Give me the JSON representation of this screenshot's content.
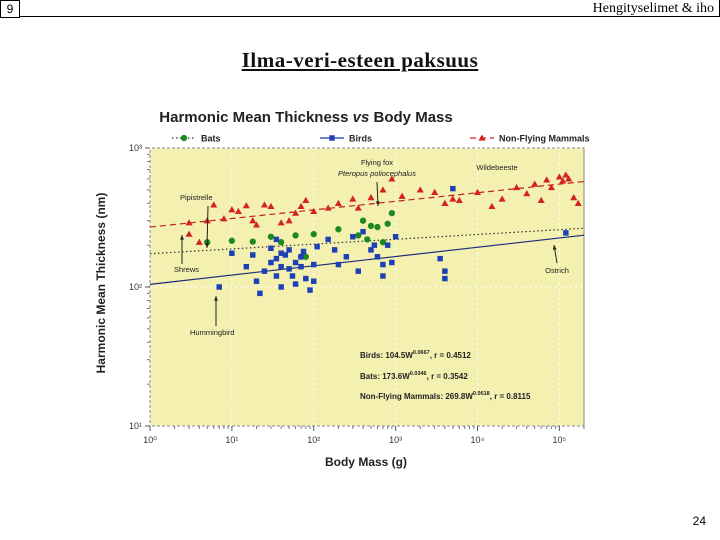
{
  "slide": {
    "number": "9",
    "header_text": "Hengityselimet & iho",
    "title": "Ilma-veri-esteen paksuus",
    "page_number": "24"
  },
  "chart_data": {
    "type": "scatter",
    "title_pre": "Harmonic Mean Thickness ",
    "title_vs": "vs",
    "title_post": " Body Mass",
    "xlabel": "Body Mass (g)",
    "ylabel": "Harmonic Mean Thickness (nm)",
    "x_scale": "log",
    "y_scale": "log",
    "xlim": [
      1,
      200000
    ],
    "ylim": [
      10,
      1000
    ],
    "x_tick_labels": [
      "10⁰",
      "10¹",
      "10²",
      "10³",
      "10⁴",
      "10⁵"
    ],
    "y_tick_labels": [
      "10¹",
      "10²",
      "10³"
    ],
    "legend_position": "top",
    "plot_background": "#f3f0b0",
    "series": [
      {
        "name": "Bats",
        "marker": "circle",
        "color": "#1e8a1e",
        "line_style": "dotted",
        "fit": {
          "a": 173.6,
          "b": 0.0346
        },
        "points": [
          [
            5,
            210
          ],
          [
            10,
            215
          ],
          [
            18,
            212
          ],
          [
            30,
            230
          ],
          [
            40,
            210
          ],
          [
            60,
            235
          ],
          [
            70,
            165
          ],
          [
            80,
            165
          ],
          [
            100,
            240
          ],
          [
            200,
            260
          ],
          [
            350,
            235
          ],
          [
            400,
            300
          ],
          [
            450,
            220
          ],
          [
            500,
            275
          ],
          [
            600,
            270
          ],
          [
            700,
            210
          ],
          [
            800,
            285
          ],
          [
            900,
            340
          ]
        ]
      },
      {
        "name": "Birds",
        "marker": "square",
        "color": "#1f3fb5",
        "line_style": "solid",
        "fit": {
          "a": 104.5,
          "b": 0.0667
        },
        "points": [
          [
            7,
            100
          ],
          [
            10,
            175
          ],
          [
            15,
            140
          ],
          [
            18,
            170
          ],
          [
            20,
            110
          ],
          [
            22,
            90
          ],
          [
            25,
            130
          ],
          [
            30,
            190
          ],
          [
            30,
            150
          ],
          [
            35,
            220
          ],
          [
            35,
            160
          ],
          [
            35,
            120
          ],
          [
            40,
            100
          ],
          [
            40,
            140
          ],
          [
            40,
            175
          ],
          [
            45,
            170
          ],
          [
            50,
            185
          ],
          [
            50,
            135
          ],
          [
            55,
            120
          ],
          [
            60,
            150
          ],
          [
            60,
            105
          ],
          [
            70,
            165
          ],
          [
            70,
            140
          ],
          [
            75,
            180
          ],
          [
            80,
            115
          ],
          [
            90,
            95
          ],
          [
            100,
            110
          ],
          [
            100,
            145
          ],
          [
            110,
            195
          ],
          [
            150,
            220
          ],
          [
            180,
            185
          ],
          [
            200,
            145
          ],
          [
            250,
            165
          ],
          [
            300,
            230
          ],
          [
            350,
            130
          ],
          [
            400,
            250
          ],
          [
            500,
            185
          ],
          [
            550,
            200
          ],
          [
            600,
            165
          ],
          [
            700,
            145
          ],
          [
            700,
            120
          ],
          [
            800,
            200
          ],
          [
            900,
            150
          ],
          [
            1000,
            230
          ],
          [
            3500,
            160
          ],
          [
            4000,
            130
          ],
          [
            4000,
            115
          ],
          [
            5000,
            510
          ],
          [
            120000,
            245
          ]
        ]
      },
      {
        "name": "Non-Flying Mammals",
        "marker": "triangle",
        "color": "#d42020",
        "line_style": "dashed",
        "fit": {
          "a": 269.8,
          "b": 0.0618
        },
        "points": [
          [
            3,
            240
          ],
          [
            3,
            290
          ],
          [
            4,
            210
          ],
          [
            5,
            300
          ],
          [
            6,
            390
          ],
          [
            8,
            310
          ],
          [
            10,
            360
          ],
          [
            12,
            350
          ],
          [
            15,
            385
          ],
          [
            18,
            300
          ],
          [
            20,
            280
          ],
          [
            25,
            390
          ],
          [
            30,
            380
          ],
          [
            40,
            290
          ],
          [
            50,
            300
          ],
          [
            60,
            340
          ],
          [
            70,
            380
          ],
          [
            80,
            420
          ],
          [
            100,
            350
          ],
          [
            150,
            370
          ],
          [
            200,
            400
          ],
          [
            300,
            430
          ],
          [
            350,
            370
          ],
          [
            500,
            440
          ],
          [
            700,
            500
          ],
          [
            900,
            600
          ],
          [
            1200,
            450
          ],
          [
            2000,
            500
          ],
          [
            3000,
            480
          ],
          [
            4000,
            400
          ],
          [
            5000,
            430
          ],
          [
            6000,
            420
          ],
          [
            10000,
            480
          ],
          [
            15000,
            380
          ],
          [
            20000,
            430
          ],
          [
            30000,
            520
          ],
          [
            40000,
            470
          ],
          [
            50000,
            550
          ],
          [
            60000,
            420
          ],
          [
            70000,
            590
          ],
          [
            80000,
            520
          ],
          [
            100000,
            620
          ],
          [
            110000,
            580
          ],
          [
            120000,
            640
          ],
          [
            130000,
            600
          ],
          [
            150000,
            440
          ],
          [
            170000,
            400
          ]
        ]
      }
    ],
    "annotations": [
      {
        "text": "Pipistrelle",
        "italic": false
      },
      {
        "text": "Flying fox",
        "italic": false
      },
      {
        "text": "Pteropus poliocephalus",
        "italic": true
      },
      {
        "text": "Wildebeeste",
        "italic": false
      },
      {
        "text": "Shrews",
        "italic": false
      },
      {
        "text": "Ostrich",
        "italic": false
      },
      {
        "text": "Hummingbird",
        "italic": false
      }
    ],
    "equations": [
      {
        "prefix": "Birds: 104.5W",
        "exponent": "0.0667",
        "r_text": ", r = 0.4512"
      },
      {
        "prefix": "Bats: 173.6W",
        "exponent": "0.0346",
        "r_text": ", r = 0.3542"
      },
      {
        "prefix": "Non-Flying Mammals: 269.8W",
        "exponent": "0.0618",
        "r_text": ", r = 0.8115"
      }
    ]
  }
}
